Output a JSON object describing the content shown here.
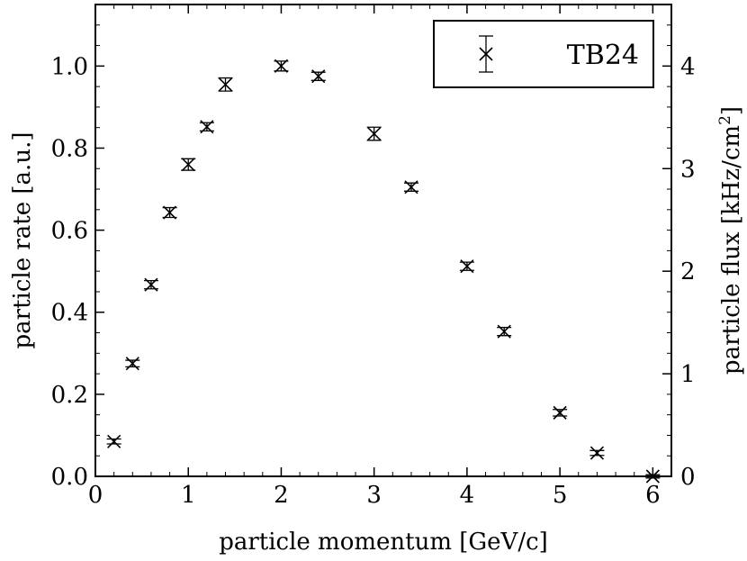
{
  "chart_data": {
    "type": "scatter",
    "xlabel": "particle momentum [GeV/c]",
    "ylabel": "particle rate [a.u.]",
    "y2label_parts": [
      "particle flux [kHz/cm",
      "2",
      "]"
    ],
    "xlim": [
      0,
      6.2
    ],
    "ylim": [
      0,
      1.15
    ],
    "y2lim": [
      0,
      4.6
    ],
    "xticks": [
      0,
      1,
      2,
      3,
      4,
      5,
      6
    ],
    "yticks": [
      0.0,
      0.2,
      0.4,
      0.6,
      0.8,
      1.0
    ],
    "ytick_labels": [
      "0.0",
      "0.2",
      "0.4",
      "0.6",
      "0.8",
      "1.0"
    ],
    "y2ticks": [
      0,
      1,
      2,
      3,
      4
    ],
    "legend": {
      "placement": "top-right",
      "entries": [
        "TB24"
      ]
    },
    "marker": "x",
    "error_bars": true,
    "series": [
      {
        "name": "TB24",
        "x": [
          0.2,
          0.4,
          0.6,
          0.8,
          1.0,
          1.2,
          1.4,
          2.0,
          2.4,
          3.0,
          3.4,
          4.0,
          4.4,
          5.0,
          5.4,
          6.0
        ],
        "y": [
          0.085,
          0.275,
          0.467,
          0.643,
          0.76,
          0.852,
          0.955,
          1.0,
          0.975,
          0.835,
          0.705,
          0.512,
          0.353,
          0.155,
          0.057,
          0.0
        ],
        "yerr": [
          0.006,
          0.008,
          0.01,
          0.012,
          0.014,
          0.01,
          0.016,
          0.012,
          0.01,
          0.016,
          0.01,
          0.01,
          0.01,
          0.008,
          0.006,
          0.004
        ]
      }
    ]
  }
}
